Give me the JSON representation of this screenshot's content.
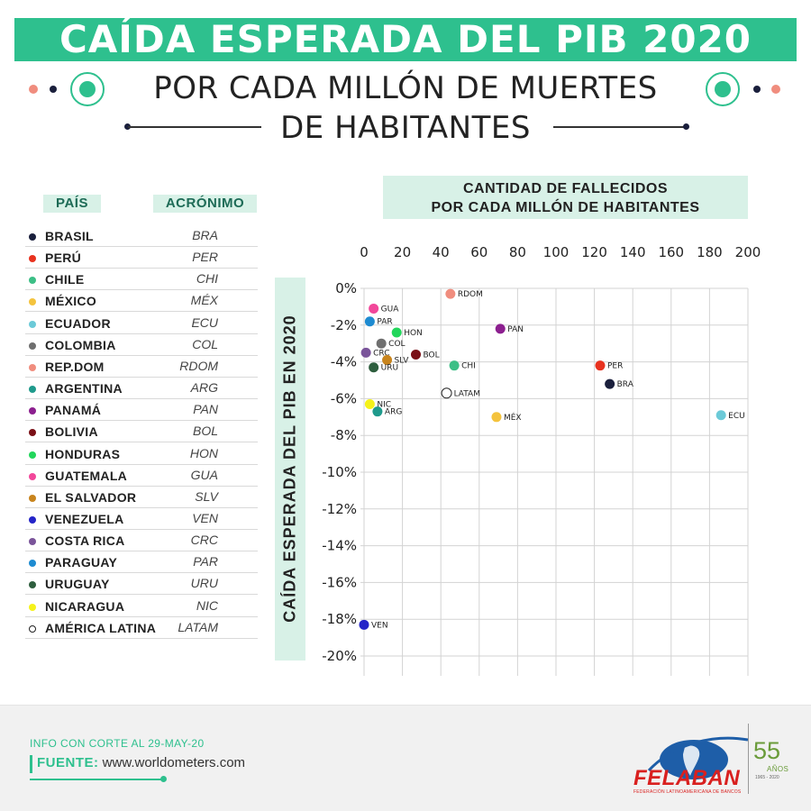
{
  "header": {
    "title": "CAÍDA ESPERADA DEL PIB 2020",
    "subtitle_line1": "POR CADA MILLÓN DE MUERTES",
    "subtitle_line2": "DE HABITANTES"
  },
  "legend": {
    "header_country": "PAÍS",
    "header_acronym": "ACRÓNIMO",
    "items": [
      {
        "country": "BRASIL",
        "acronym": "BRA",
        "color": "#1a1f3c"
      },
      {
        "country": "PERÚ",
        "acronym": "PER",
        "color": "#e8321f"
      },
      {
        "country": "CHILE",
        "acronym": "CHI",
        "color": "#3cbf86"
      },
      {
        "country": "MÉXICO",
        "acronym": "MÉX",
        "color": "#f4c33d"
      },
      {
        "country": "ECUADOR",
        "acronym": "ECU",
        "color": "#6ccad8"
      },
      {
        "country": "COLOMBIA",
        "acronym": "COL",
        "color": "#6f6f6f"
      },
      {
        "country": "REP.DOM",
        "acronym": "RDOM",
        "color": "#f08d7e"
      },
      {
        "country": "ARGENTINA",
        "acronym": "ARG",
        "color": "#1f9a8c"
      },
      {
        "country": "PANAMÁ",
        "acronym": "PAN",
        "color": "#8c1f8f"
      },
      {
        "country": "BOLIVIA",
        "acronym": "BOL",
        "color": "#7a0f16"
      },
      {
        "country": "HONDURAS",
        "acronym": "HON",
        "color": "#22d65b"
      },
      {
        "country": "GUATEMALA",
        "acronym": "GUA",
        "color": "#f2479a"
      },
      {
        "country": "EL SALVADOR",
        "acronym": "SLV",
        "color": "#c8841d"
      },
      {
        "country": "VENEZUELA",
        "acronym": "VEN",
        "color": "#2424c8"
      },
      {
        "country": "COSTA RICA",
        "acronym": "CRC",
        "color": "#7a549a"
      },
      {
        "country": "PARAGUAY",
        "acronym": "PAR",
        "color": "#1e8bd1"
      },
      {
        "country": "URUGUAY",
        "acronym": "URU",
        "color": "#2e5e3e"
      },
      {
        "country": "NICARAGUA",
        "acronym": "NIC",
        "color": "#f5f21a"
      },
      {
        "country": "AMÉRICA LATINA",
        "acronym": "LATAM",
        "color": "#ffffff"
      }
    ]
  },
  "chart_data": {
    "type": "scatter",
    "xlabel": "CANTIDAD DE FALLECIDOS POR CADA MILLÓN DE HABITANTES",
    "xlabel_line1": "CANTIDAD DE FALLECIDOS",
    "xlabel_line2": "POR CADA MILLÓN DE HABITANTES",
    "ylabel": "CAÍDA ESPERADA DEL PIB EN 2020",
    "xlim": [
      0,
      200
    ],
    "ylim": [
      -20,
      0
    ],
    "x_ticks": [
      "0",
      "20",
      "40",
      "60",
      "80",
      "100",
      "120",
      "140",
      "160",
      "180",
      "200"
    ],
    "y_ticks": [
      "0%",
      "-2%",
      "-4%",
      "-6%",
      "-8%",
      "-10%",
      "-12%",
      "-14%",
      "-16%",
      "-18%",
      "-20%"
    ],
    "points": [
      {
        "label": "RDOM",
        "x": 45,
        "y": -0.3,
        "color": "#f08d7e"
      },
      {
        "label": "GUA",
        "x": 5,
        "y": -1.1,
        "color": "#f2479a"
      },
      {
        "label": "PAR",
        "x": 3,
        "y": -1.8,
        "color": "#1e8bd1"
      },
      {
        "label": "PAN",
        "x": 71,
        "y": -2.2,
        "color": "#8c1f8f"
      },
      {
        "label": "HON",
        "x": 17,
        "y": -2.4,
        "color": "#22d65b"
      },
      {
        "label": "COL",
        "x": 9,
        "y": -3.0,
        "color": "#6f6f6f"
      },
      {
        "label": "CRC",
        "x": 1,
        "y": -3.5,
        "color": "#7a549a"
      },
      {
        "label": "BOL",
        "x": 27,
        "y": -3.6,
        "color": "#7a0f16"
      },
      {
        "label": "SLV",
        "x": 12,
        "y": -3.9,
        "color": "#c8841d"
      },
      {
        "label": "URU",
        "x": 5,
        "y": -4.3,
        "color": "#2e5e3e"
      },
      {
        "label": "CHI",
        "x": 47,
        "y": -4.2,
        "color": "#3cbf86"
      },
      {
        "label": "PER",
        "x": 123,
        "y": -4.2,
        "color": "#e8321f"
      },
      {
        "label": "BRA",
        "x": 128,
        "y": -5.2,
        "color": "#1a1f3c"
      },
      {
        "label": "LATAM",
        "x": 43,
        "y": -5.7,
        "color": "#ffffff"
      },
      {
        "label": "NIC",
        "x": 3,
        "y": -6.3,
        "color": "#f5f21a"
      },
      {
        "label": "ARG",
        "x": 7,
        "y": -6.7,
        "color": "#1f9a8c"
      },
      {
        "label": "MÉX",
        "x": 69,
        "y": -7.0,
        "color": "#f4c33d"
      },
      {
        "label": "ECU",
        "x": 186,
        "y": -6.9,
        "color": "#6ccad8"
      },
      {
        "label": "VEN",
        "x": 0,
        "y": -18.3,
        "color": "#2424c8"
      }
    ]
  },
  "footer": {
    "info": "INFO CON CORTE AL 29-MAY-20",
    "source_label": "FUENTE:",
    "source_value": "www.worldometers.com"
  },
  "logo": {
    "name": "FELABAN",
    "subtitle": "FEDERACIÓN LATINOAMERICANA DE BANCOS",
    "anniversary": "55",
    "anniversary_word": "AÑOS",
    "anniversary_years": "1965 - 2020"
  }
}
